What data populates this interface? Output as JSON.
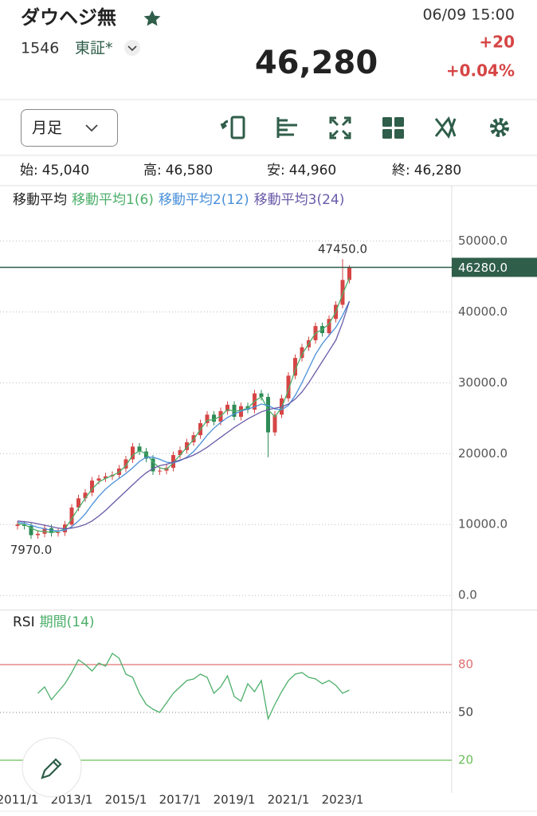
{
  "header": {
    "title": "ダウヘジ無",
    "code": "1546",
    "market": "東証*",
    "datetime": "06/09 15:00",
    "change": "+20",
    "change_pct": "+0.04%",
    "price": "46,280"
  },
  "toolbar": {
    "period": "月足"
  },
  "ohlc": [
    {
      "label": "始:",
      "value": "45,040"
    },
    {
      "label": "高:",
      "value": "46,580"
    },
    {
      "label": "安:",
      "value": "44,960"
    },
    {
      "label": "終:",
      "value": "46,280"
    }
  ],
  "chart_data": [
    {
      "type": "candlestick",
      "legend_title": "移動平均",
      "categories": [
        "2011/1",
        null,
        null,
        null,
        null,
        null,
        null,
        null,
        "2013/1",
        null,
        null,
        null,
        null,
        null,
        null,
        null,
        "2015/1",
        null,
        null,
        null,
        null,
        null,
        null,
        null,
        "2017/1",
        null,
        null,
        null,
        null,
        null,
        null,
        null,
        "2019/1",
        null,
        null,
        null,
        null,
        null,
        null,
        null,
        "2021/1",
        null,
        null,
        null,
        null,
        null,
        null,
        null,
        "2023/1",
        null
      ],
      "open": [
        9800,
        10000,
        9800,
        8500,
        8700,
        9500,
        8800,
        8900,
        10000,
        12400,
        13700,
        14500,
        16200,
        16500,
        16800,
        17000,
        17900,
        19200,
        21000,
        20300,
        19300,
        17500,
        17600,
        18000,
        19800,
        20500,
        21600,
        22600,
        24300,
        25500,
        24500,
        26000,
        26900,
        25200,
        26700,
        26200,
        28500,
        28000,
        23000,
        25500,
        27800,
        31000,
        33500,
        35000,
        36000,
        38000,
        37000,
        39000,
        41000,
        44500
      ],
      "high": [
        10500,
        10500,
        10300,
        9200,
        10000,
        10000,
        9400,
        10500,
        12900,
        14200,
        15000,
        16700,
        17000,
        17300,
        17500,
        18400,
        19700,
        21500,
        21500,
        20800,
        19800,
        18100,
        18500,
        20300,
        21000,
        22100,
        23100,
        24800,
        26000,
        26000,
        26500,
        27400,
        27400,
        27200,
        27200,
        29000,
        29000,
        28500,
        26000,
        28300,
        31500,
        34000,
        35500,
        36500,
        38500,
        38500,
        39500,
        41500,
        47450,
        46580
      ],
      "low": [
        9300,
        9300,
        7970,
        8000,
        8200,
        8300,
        8300,
        8400,
        9500,
        11900,
        13200,
        14000,
        15700,
        16000,
        16300,
        16500,
        17400,
        18700,
        19800,
        18800,
        17000,
        17000,
        17100,
        17500,
        19300,
        20000,
        21100,
        22100,
        23800,
        24000,
        24000,
        25500,
        24700,
        24700,
        25700,
        25700,
        27500,
        19500,
        22500,
        25000,
        27300,
        30500,
        33000,
        34500,
        35500,
        36500,
        36500,
        38500,
        40500,
        44000
      ],
      "close": [
        10000,
        9800,
        8500,
        8700,
        9500,
        8800,
        8900,
        10000,
        12400,
        13700,
        14500,
        16200,
        16500,
        16800,
        17000,
        17900,
        19200,
        21000,
        20300,
        19300,
        17500,
        17600,
        18000,
        19800,
        20500,
        21600,
        22600,
        24300,
        25500,
        24500,
        26000,
        26900,
        25200,
        26700,
        26200,
        28500,
        28000,
        23000,
        25500,
        27800,
        31000,
        33500,
        35000,
        36000,
        38000,
        37000,
        39000,
        41000,
        44500,
        46280
      ],
      "up_color": "#d64545",
      "down_color": "#2e8b57",
      "series": [
        {
          "name": "移動平均1(6)",
          "color": "#4caf6a",
          "values": [
            10100,
            10000,
            9500,
            9100,
            9000,
            8900,
            9000,
            9400,
            10800,
            12300,
            13700,
            15000,
            16000,
            16500,
            16900,
            17400,
            18300,
            19800,
            20400,
            20000,
            18800,
            18000,
            17800,
            18700,
            19800,
            20900,
            22000,
            23400,
            24700,
            24800,
            25300,
            26200,
            26000,
            26100,
            26400,
            27400,
            28000,
            26200,
            25200,
            26500,
            29000,
            31800,
            34000,
            35500,
            37000,
            37500,
            38300,
            40000,
            42500,
            44800
          ]
        },
        {
          "name": "移動平均2(12)",
          "color": "#4a90d9",
          "values": [
            10300,
            10200,
            9900,
            9600,
            9400,
            9200,
            9100,
            9200,
            9700,
            10500,
            11500,
            12800,
            14000,
            15000,
            15800,
            16500,
            17200,
            18000,
            18900,
            19500,
            19500,
            19200,
            18800,
            18700,
            19000,
            19500,
            20300,
            21400,
            22600,
            23600,
            24400,
            25100,
            25600,
            26000,
            26300,
            26600,
            27000,
            26800,
            26300,
            26200,
            26800,
            28200,
            30000,
            32000,
            34000,
            35500,
            36700,
            37800,
            39500,
            41500
          ]
        },
        {
          "name": "移動平均3(24)",
          "color": "#6a5aa8",
          "values": [
            10500,
            10400,
            10300,
            10100,
            9900,
            9700,
            9500,
            9400,
            9500,
            9700,
            10000,
            10500,
            11200,
            12000,
            12900,
            13800,
            14700,
            15600,
            16500,
            17300,
            17900,
            18300,
            18500,
            18800,
            19100,
            19400,
            19800,
            20300,
            20900,
            21600,
            22300,
            23000,
            23700,
            24300,
            24900,
            25400,
            25900,
            26200,
            26400,
            26600,
            27000,
            27700,
            28700,
            30000,
            31500,
            33000,
            34500,
            36000,
            38500,
            41500
          ]
        }
      ],
      "ylim": [
        -2000,
        57800
      ],
      "yticks": [
        {
          "value": 0,
          "label": "0.0"
        },
        {
          "value": 10000,
          "label": "10000.0"
        },
        {
          "value": 20000,
          "label": "20000.0"
        },
        {
          "value": 30000,
          "label": "30000.0"
        },
        {
          "value": 40000,
          "label": "40000.0"
        },
        {
          "value": 50000,
          "label": "50000.0"
        }
      ],
      "grid": true,
      "last_price": {
        "value": 46280,
        "label": "46280.0",
        "color": "#2f5e4a"
      },
      "annotations": [
        {
          "text": "47450.0",
          "value": 47450
        },
        {
          "text": "7970.0",
          "value": 7970
        }
      ]
    },
    {
      "type": "line",
      "legend_title": "RSI",
      "series": [
        {
          "name": "期間(14)",
          "color": "#4caf6a",
          "values": [
            null,
            null,
            null,
            62,
            66,
            58,
            63,
            68,
            75,
            83,
            80,
            76,
            81,
            79,
            87,
            84,
            74,
            72,
            62,
            55,
            52,
            50,
            56,
            62,
            66,
            70,
            71,
            74,
            72,
            62,
            66,
            73,
            60,
            57,
            68,
            63,
            70,
            46,
            55,
            63,
            70,
            74,
            75,
            72,
            71,
            68,
            70,
            67,
            62,
            64
          ]
        }
      ],
      "ylim": [
        0,
        114
      ],
      "yticks": [
        20,
        50,
        80
      ],
      "tick_colors": [
        "#6cbf5a",
        "#999999",
        "#e07070"
      ]
    }
  ]
}
